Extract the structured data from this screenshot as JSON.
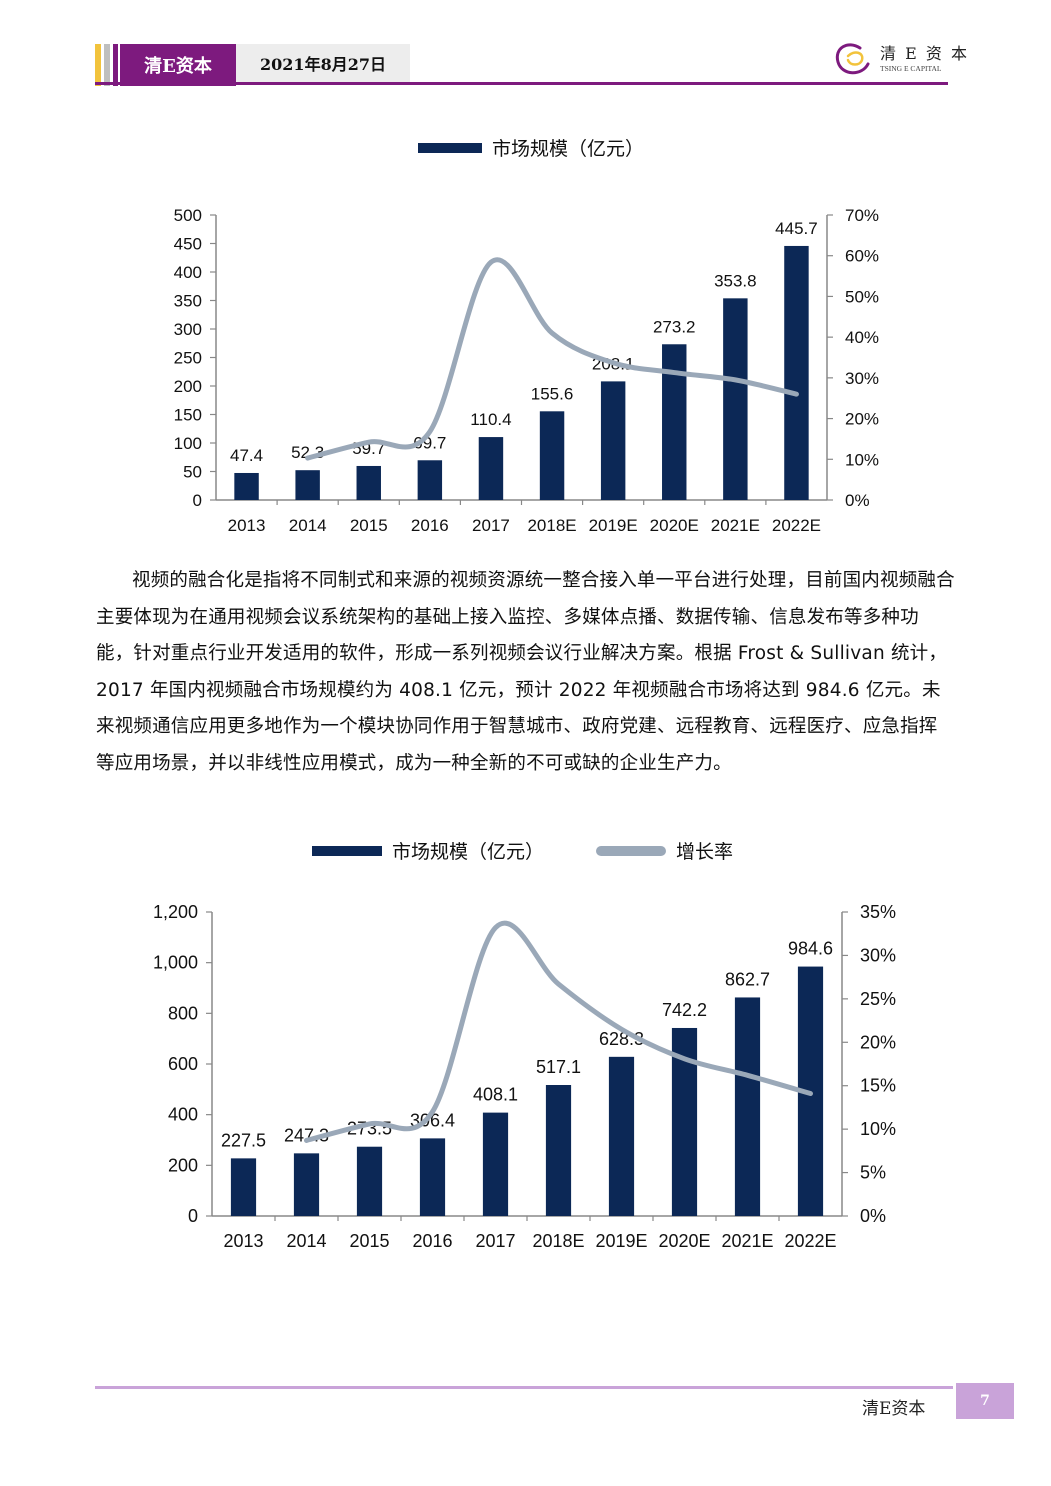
{
  "header": {
    "brand": "清E资本",
    "date": "2021年8月27日",
    "logo_cn": "清 E 资 本",
    "logo_en": "TSING E CAPITAL",
    "colors": {
      "primary": "#7d1a7e",
      "accent_yellow": "#f2c33c",
      "accent_gray": "#bfbfbf"
    }
  },
  "paragraph": "视频的融合化是指将不同制式和来源的视频资源统一整合接入单一平台进行处理，目前国内视频融合主要体现为在通用视频会议系统架构的基础上接入监控、多媒体点播、数据传输、信息发布等多种功能，针对重点行业开发适用的软件，形成一系列视频会议行业解决方案。根据 Frost & Sullivan 统计，2017 年国内视频融合市场规模约为 408.1 亿元，预计 2022 年视频融合市场将达到 984.6 亿元。未来视频通信应用更多地作为一个模块协同作用于智慧城市、政府党建、远程教育、远程医疗、应急指挥等应用场景，并以非线性应用模式，成为一种全新的不可或缺的企业生产力。",
  "footer": {
    "brand": "清E资本",
    "page": "7"
  },
  "chart_data": [
    {
      "type": "bar",
      "categories": [
        "2013",
        "2014",
        "2015",
        "2016",
        "2017",
        "2018E",
        "2019E",
        "2020E",
        "2021E",
        "2022E"
      ],
      "series": [
        {
          "name": "市场规模（亿元）",
          "type": "bar",
          "axis": "left",
          "color": "#0c2856",
          "values": [
            47.4,
            52.3,
            59.7,
            69.7,
            110.4,
            155.6,
            208.1,
            273.2,
            353.8,
            445.7
          ]
        },
        {
          "name": "",
          "type": "line",
          "axis": "right",
          "color": "#9aa8b8",
          "values": [
            null,
            10.3,
            14.2,
            16.8,
            58.4,
            41.0,
            33.7,
            31.3,
            29.5,
            26.0
          ]
        }
      ],
      "value_labels": [
        "47.4",
        "52.3",
        "59.7",
        "69.7",
        "110.4",
        "155.6",
        "208.1",
        "273.2",
        "353.8",
        "445.7"
      ],
      "left_ticks": [
        "0",
        "50",
        "100",
        "150",
        "200",
        "250",
        "300",
        "350",
        "400",
        "450",
        "500"
      ],
      "right_ticks": [
        "0%",
        "10%",
        "20%",
        "30%",
        "40%",
        "50%",
        "60%",
        "70%"
      ],
      "ylim": [
        0,
        500
      ],
      "y2lim": [
        0,
        70
      ],
      "legend": "top-center",
      "grid": false
    },
    {
      "type": "bar",
      "categories": [
        "2013",
        "2014",
        "2015",
        "2016",
        "2017",
        "2018E",
        "2019E",
        "2020E",
        "2021E",
        "2022E"
      ],
      "series": [
        {
          "name": "市场规模（亿元）",
          "type": "bar",
          "axis": "left",
          "color": "#0c2856",
          "values": [
            227.5,
            247.3,
            273.5,
            306.4,
            408.1,
            517.1,
            628.3,
            742.2,
            862.7,
            984.6
          ]
        },
        {
          "name": "增长率",
          "type": "line",
          "axis": "right",
          "color": "#9aa8b8",
          "values": [
            null,
            8.7,
            10.6,
            12.0,
            33.2,
            26.7,
            21.5,
            18.1,
            16.2,
            14.1
          ]
        }
      ],
      "value_labels": [
        "227.5",
        "247.3",
        "273.5",
        "306.4",
        "408.1",
        "517.1",
        "628.3",
        "742.2",
        "862.7",
        "984.6"
      ],
      "left_ticks": [
        "0",
        "200",
        "400",
        "600",
        "800",
        "1,000",
        "1,200"
      ],
      "right_ticks": [
        "0%",
        "5%",
        "10%",
        "15%",
        "20%",
        "25%",
        "30%",
        "35%"
      ],
      "ylim": [
        0,
        1200
      ],
      "y2lim": [
        0,
        35
      ],
      "legend": "top-center",
      "grid": false
    }
  ]
}
